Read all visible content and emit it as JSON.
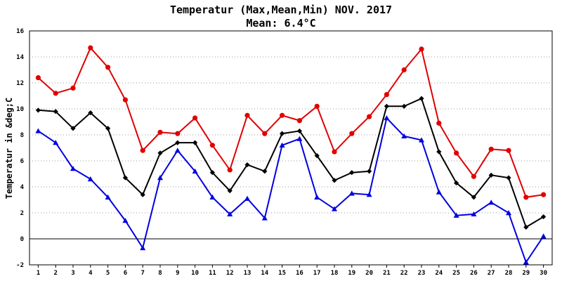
{
  "chart_data": {
    "type": "line",
    "title": "Temperatur (Max,Mean,Min) NOV. 2017",
    "subtitle": "Mean: 6.4°C",
    "xlabel": "",
    "ylabel": "Temperatur in &deg;C",
    "x": [
      1,
      2,
      3,
      4,
      5,
      6,
      7,
      8,
      9,
      10,
      11,
      12,
      13,
      14,
      15,
      16,
      17,
      18,
      19,
      20,
      21,
      22,
      23,
      24,
      25,
      26,
      27,
      28,
      29,
      30
    ],
    "ylim": [
      -2,
      16
    ],
    "yticks": [
      -2,
      0,
      2,
      4,
      6,
      8,
      10,
      12,
      14,
      16
    ],
    "grid": "horizontal dotted",
    "legend": "none",
    "series": [
      {
        "color": "#e00000",
        "marker": "circle",
        "values": [
          12.4,
          11.2,
          11.6,
          14.7,
          13.2,
          10.7,
          6.8,
          8.2,
          8.1,
          9.3,
          7.2,
          5.3,
          9.5,
          8.1,
          9.5,
          9.1,
          10.2,
          6.7,
          8.1,
          9.4,
          11.1,
          13.0,
          14.6,
          8.9,
          6.6,
          4.8,
          6.9,
          6.8,
          3.2,
          3.4
        ]
      },
      {
        "color": "#000000",
        "marker": "diamond",
        "values": [
          9.9,
          9.8,
          8.5,
          9.7,
          8.5,
          4.7,
          3.4,
          6.6,
          7.4,
          7.4,
          5.1,
          3.7,
          5.7,
          5.2,
          8.1,
          8.3,
          6.4,
          4.5,
          5.1,
          5.2,
          10.2,
          10.2,
          10.8,
          6.7,
          4.3,
          3.2,
          4.9,
          4.7,
          0.9,
          1.7
        ]
      },
      {
        "color": "#0000e0",
        "marker": "triangle",
        "values": [
          8.3,
          7.4,
          5.4,
          4.6,
          3.2,
          1.4,
          -0.7,
          4.7,
          6.8,
          5.2,
          3.2,
          1.9,
          3.1,
          1.6,
          7.2,
          7.7,
          3.2,
          2.3,
          3.5,
          3.4,
          9.3,
          7.9,
          7.6,
          3.6,
          1.8,
          1.9,
          2.8,
          2.0,
          -1.8,
          0.2
        ]
      }
    ]
  }
}
